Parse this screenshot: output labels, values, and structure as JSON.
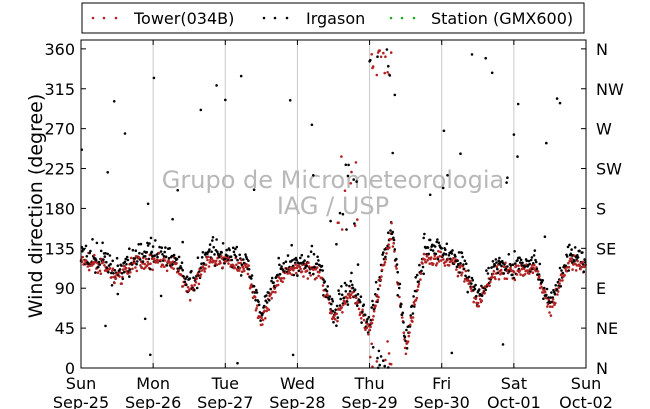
{
  "chart_data": {
    "type": "scatter",
    "ylabel": "Wind direction (degree)",
    "xlabel": "",
    "watermark": [
      "Grupo de Micrometeorologia",
      "IAG / USP"
    ],
    "x_range": [
      "2011-09-25T00:00",
      "2011-10-02T00:00"
    ],
    "ylim": [
      0,
      370
    ],
    "yticks": [
      0,
      45,
      90,
      135,
      180,
      225,
      270,
      315,
      360
    ],
    "yticks_right": [
      {
        "value": 0,
        "label": "N"
      },
      {
        "value": 45,
        "label": "NE"
      },
      {
        "value": 90,
        "label": "E"
      },
      {
        "value": 135,
        "label": "SE"
      },
      {
        "value": 180,
        "label": "S"
      },
      {
        "value": 225,
        "label": "SW"
      },
      {
        "value": 270,
        "label": "W"
      },
      {
        "value": 315,
        "label": "NW"
      },
      {
        "value": 360,
        "label": "N"
      }
    ],
    "xticks": [
      {
        "day": "Sun",
        "date": "Sep-25"
      },
      {
        "day": "Mon",
        "date": "Sep-26"
      },
      {
        "day": "Tue",
        "date": "Sep-27"
      },
      {
        "day": "Wed",
        "date": "Sep-28"
      },
      {
        "day": "Thu",
        "date": "Sep-29"
      },
      {
        "day": "Fri",
        "date": "Sep-30"
      },
      {
        "day": "Sat",
        "date": "Oct-01"
      },
      {
        "day": "Sun",
        "date": "Oct-02"
      }
    ],
    "grid": "vertical",
    "legend_position": "top",
    "series": [
      {
        "name": "Tower(034B)",
        "color": "#b22222",
        "marker": "dot"
      },
      {
        "name": "Irgason",
        "color": "#000000",
        "marker": "dot"
      },
      {
        "name": "Station (GMX600)",
        "color": "#22aa22",
        "marker": "dot"
      }
    ],
    "trend_days": [
      0,
      0.3,
      0.5,
      0.75,
      1.0,
      1.3,
      1.5,
      1.75,
      2.0,
      2.3,
      2.5,
      2.75,
      3.0,
      3.3,
      3.5,
      3.75,
      4.0,
      4.3,
      4.5,
      4.75,
      5.0,
      5.3,
      5.5,
      5.75,
      6.0,
      6.3,
      6.5,
      6.75,
      7.0
    ],
    "trend_deg": [
      120,
      115,
      100,
      118,
      122,
      115,
      85,
      120,
      120,
      112,
      50,
      105,
      112,
      110,
      55,
      85,
      40,
      155,
      20,
      125,
      125,
      110,
      70,
      110,
      108,
      112,
      65,
      120,
      112
    ]
  }
}
